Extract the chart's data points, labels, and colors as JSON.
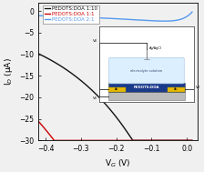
{
  "xlabel": "V$_{G}$ (V)",
  "ylabel": "I$_{D}$ (μA)",
  "xlim": [
    -0.42,
    0.03
  ],
  "ylim": [
    -30,
    2
  ],
  "yticks": [
    -30,
    -25,
    -20,
    -15,
    -10,
    -5,
    0
  ],
  "xticks": [
    -0.4,
    -0.3,
    -0.2,
    -0.1,
    0.0
  ],
  "legend_labels": [
    "PEDOTS:DOA 1:10",
    "PEDOTS:DOA 1:1",
    "PEDOTS:DOA 2:1"
  ],
  "colors": [
    "#111111",
    "#cc0000",
    "#5599ee"
  ],
  "bg_color": "#f0f0f0",
  "plot_bg": "#f0f0f0",
  "figure_width": 2.24,
  "figure_height": 1.89,
  "dpi": 100
}
